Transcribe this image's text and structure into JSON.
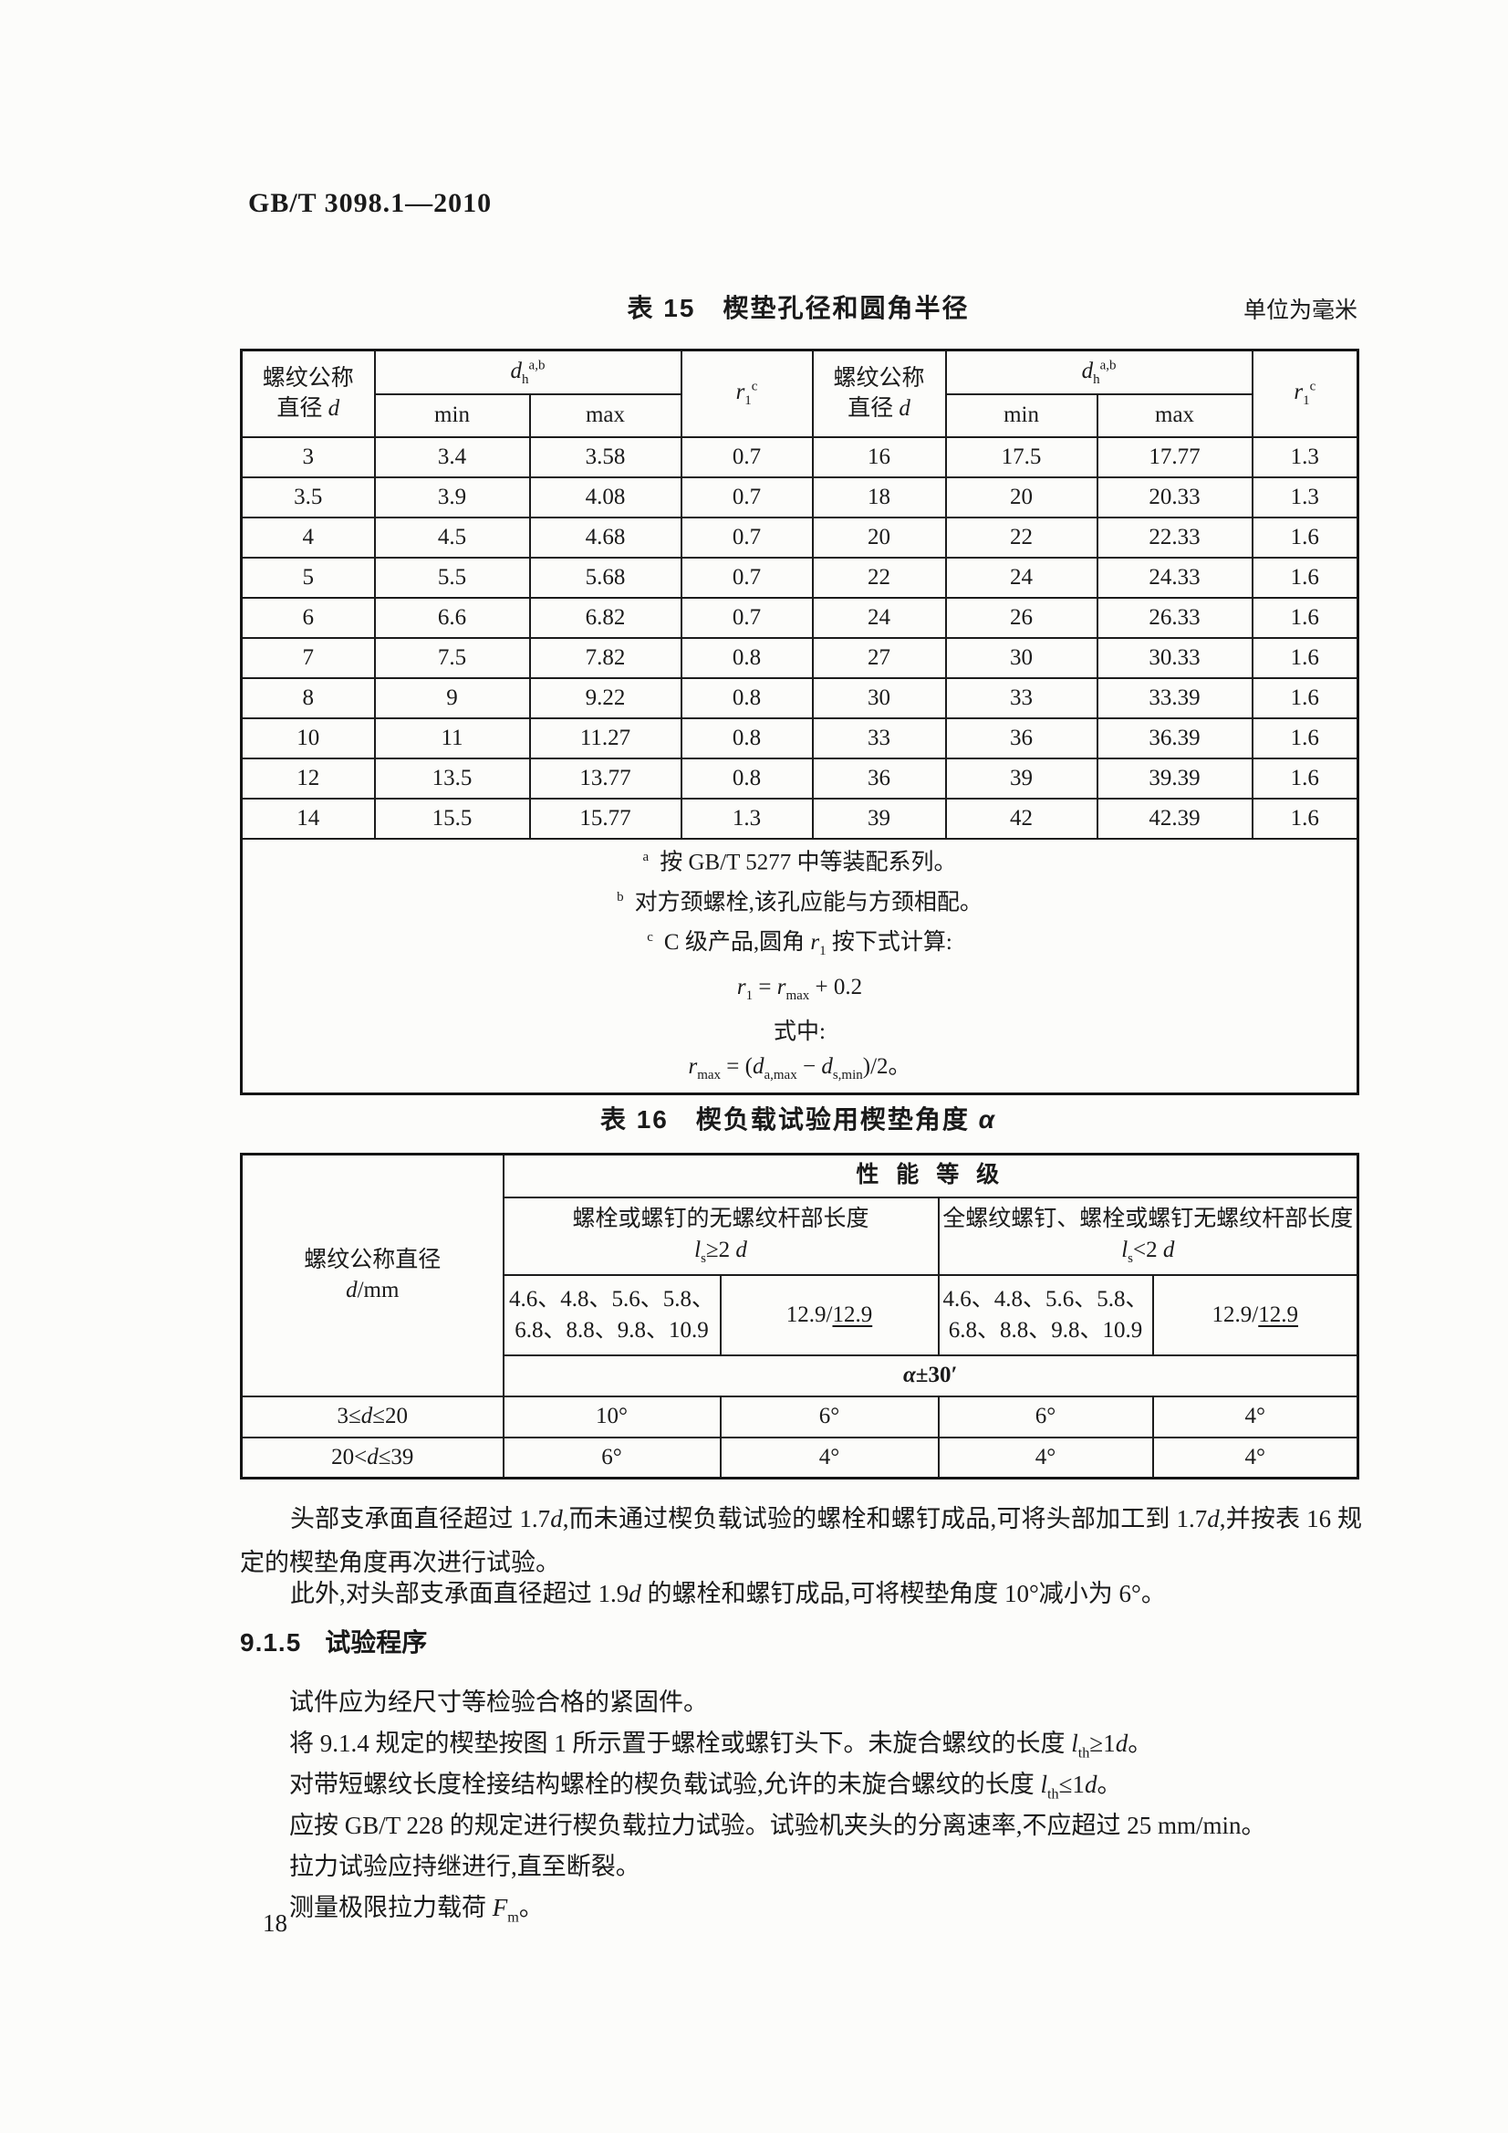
{
  "page": {
    "standard_number": "GB/T 3098.1—2010",
    "page_number": "18"
  },
  "table15": {
    "title": "表 15　楔垫孔径和圆角半径",
    "unit_note": "单位为毫米",
    "header": {
      "dia_line1": "螺纹公称",
      "dia_line2": [
        {
          "t": "直径 "
        },
        {
          "t": "d",
          "i": true
        }
      ],
      "dh": [
        {
          "t": "d",
          "i": true
        },
        {
          "t": "h",
          "sub": true
        },
        {
          "t": "a,b",
          "sup": true
        }
      ],
      "r1": [
        {
          "t": "r",
          "i": true
        },
        {
          "t": "1",
          "sub": true
        },
        {
          "t": "c",
          "sup": true
        }
      ],
      "min": "min",
      "max": "max"
    },
    "rows": [
      [
        "3",
        "3.4",
        "3.58",
        "0.7",
        "16",
        "17.5",
        "17.77",
        "1.3"
      ],
      [
        "3.5",
        "3.9",
        "4.08",
        "0.7",
        "18",
        "20",
        "20.33",
        "1.3"
      ],
      [
        "4",
        "4.5",
        "4.68",
        "0.7",
        "20",
        "22",
        "22.33",
        "1.6"
      ],
      [
        "5",
        "5.5",
        "5.68",
        "0.7",
        "22",
        "24",
        "24.33",
        "1.6"
      ],
      [
        "6",
        "6.6",
        "6.82",
        "0.7",
        "24",
        "26",
        "26.33",
        "1.6"
      ],
      [
        "7",
        "7.5",
        "7.82",
        "0.8",
        "27",
        "30",
        "30.33",
        "1.6"
      ],
      [
        "8",
        "9",
        "9.22",
        "0.8",
        "30",
        "33",
        "33.39",
        "1.6"
      ],
      [
        "10",
        "11",
        "11.27",
        "0.8",
        "33",
        "36",
        "36.39",
        "1.6"
      ],
      [
        "12",
        "13.5",
        "13.77",
        "0.8",
        "36",
        "39",
        "39.39",
        "1.6"
      ],
      [
        "14",
        "15.5",
        "15.77",
        "1.3",
        "39",
        "42",
        "42.39",
        "1.6"
      ]
    ],
    "footnotes": [
      {
        "marker": "a",
        "text": [
          {
            "t": "按 GB/T 5277 中等装配系列。"
          }
        ]
      },
      {
        "marker": "b",
        "text": [
          {
            "t": "对方颈螺栓,该孔应能与方颈相配。"
          }
        ]
      },
      {
        "marker": "c",
        "text": [
          {
            "t": "C 级产品,圆角 "
          },
          {
            "t": "r",
            "i": true
          },
          {
            "t": "1",
            "sub": true
          },
          {
            "t": " 按下式计算:"
          }
        ]
      }
    ],
    "formula_main": [
      {
        "t": "r",
        "i": true
      },
      {
        "t": "1",
        "sub": true
      },
      {
        "t": " = "
      },
      {
        "t": "r",
        "i": true
      },
      {
        "t": "max",
        "sub": true
      },
      {
        "t": " + 0.2"
      }
    ],
    "formula_where": "式中:",
    "formula_rmax": [
      {
        "t": "r",
        "i": true
      },
      {
        "t": "max",
        "sub": true
      },
      {
        "t": " = ("
      },
      {
        "t": "d",
        "i": true
      },
      {
        "t": "a,max",
        "sub": true
      },
      {
        "t": " − "
      },
      {
        "t": "d",
        "i": true
      },
      {
        "t": "s,min",
        "sub": true
      },
      {
        "t": ")/2。"
      }
    ]
  },
  "table16": {
    "title": [
      {
        "t": "表 16　楔负载试验用楔垫角度 "
      },
      {
        "t": "α",
        "i": true
      }
    ],
    "left_header_line1": "螺纹公称直径",
    "left_header_line2": [
      {
        "t": "d",
        "i": true
      },
      {
        "t": "/mm"
      }
    ],
    "perf_header": "性 能 等 级",
    "group1_line1": "螺栓或螺钉的无螺纹杆部长度",
    "group1_line2": [
      {
        "t": "l",
        "i": true
      },
      {
        "t": "s",
        "sub": true
      },
      {
        "t": "≥2 "
      },
      {
        "t": "d",
        "i": true
      }
    ],
    "group2_line1": "全螺纹螺钉、螺栓或螺钉无螺纹杆部长度",
    "group2_line2": [
      {
        "t": "l",
        "i": true
      },
      {
        "t": "s",
        "sub": true
      },
      {
        "t": "<2 "
      },
      {
        "t": "d",
        "i": true
      }
    ],
    "class_list_line1": "4.6、4.8、5.6、5.8、",
    "class_list_line2": "6.8、8.8、9.8、10.9",
    "class_high": [
      {
        "t": "12.9/"
      },
      {
        "t": "12.9",
        "u": true
      }
    ],
    "alpha_row": [
      {
        "t": "α",
        "i": true
      },
      {
        "t": "±30′"
      }
    ],
    "rows": [
      {
        "label": [
          {
            "t": "3≤"
          },
          {
            "t": "d",
            "i": true
          },
          {
            "t": "≤20"
          }
        ],
        "values": [
          "10°",
          "6°",
          "6°",
          "4°"
        ]
      },
      {
        "label": [
          {
            "t": "20<"
          },
          {
            "t": "d",
            "i": true
          },
          {
            "t": "≤39"
          }
        ],
        "values": [
          "6°",
          "4°",
          "4°",
          "4°"
        ]
      }
    ]
  },
  "body": {
    "p1": [
      {
        "t": "头部支承面直径超过 1.7"
      },
      {
        "t": "d",
        "i": true
      },
      {
        "t": ",而未通过楔负载试验的螺栓和螺钉成品,可将头部加工到 1.7"
      },
      {
        "t": "d",
        "i": true
      },
      {
        "t": ",并按表 16 规定的楔垫角度再次进行试验。"
      }
    ],
    "p2": [
      {
        "t": "此外,对头部支承面直径超过 1.9"
      },
      {
        "t": "d",
        "i": true
      },
      {
        "t": " 的螺栓和螺钉成品,可将楔垫角度 10°减小为 6°。"
      }
    ]
  },
  "section": {
    "number": "9.1.5",
    "title": "试验程序"
  },
  "procedure": {
    "lines": [
      [
        {
          "t": "试件应为经尺寸等检验合格的紧固件。"
        }
      ],
      [
        {
          "t": "将 9.1.4 规定的楔垫按图 1 所示置于螺栓或螺钉头下。未旋合螺纹的长度 "
        },
        {
          "t": "l",
          "i": true
        },
        {
          "t": "th",
          "sub": true
        },
        {
          "t": "≥1"
        },
        {
          "t": "d",
          "i": true
        },
        {
          "t": "。"
        }
      ],
      [
        {
          "t": "对带短螺纹长度栓接结构螺栓的楔负载试验,允许的未旋合螺纹的长度 "
        },
        {
          "t": "l",
          "i": true
        },
        {
          "t": "th",
          "sub": true
        },
        {
          "t": "≤1"
        },
        {
          "t": "d",
          "i": true
        },
        {
          "t": "。"
        }
      ],
      [
        {
          "t": "应按 GB/T 228 的规定进行楔负载拉力试验。试验机夹头的分离速率,不应超过 25 mm/min。"
        }
      ],
      [
        {
          "t": "拉力试验应持继进行,直至断裂。"
        }
      ],
      [
        {
          "t": "测量极限拉力载荷 "
        },
        {
          "t": "F",
          "i": true
        },
        {
          "t": "m",
          "sub": true
        },
        {
          "t": "。"
        }
      ]
    ]
  }
}
